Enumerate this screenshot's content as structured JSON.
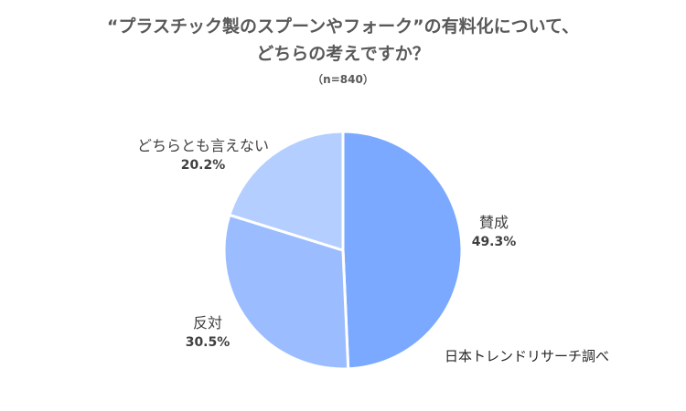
{
  "chart_data": {
    "type": "pie",
    "title_line1": "“プラスチック製のスプーンやフォーク”の有料化について、",
    "title_line2": "どちらの考えですか？",
    "subtitle": "（n=840）",
    "slices": [
      {
        "label": "賛成",
        "value": 49.3,
        "display": "49.3%",
        "color": "#7aa9ff"
      },
      {
        "label": "反対",
        "value": 30.5,
        "display": "30.5%",
        "color": "#9bbdff"
      },
      {
        "label": "どちらとも言えない",
        "value": 20.2,
        "display": "20.2%",
        "color": "#b3ceff"
      }
    ],
    "source": "日本トレンドリサーチ調べ"
  }
}
